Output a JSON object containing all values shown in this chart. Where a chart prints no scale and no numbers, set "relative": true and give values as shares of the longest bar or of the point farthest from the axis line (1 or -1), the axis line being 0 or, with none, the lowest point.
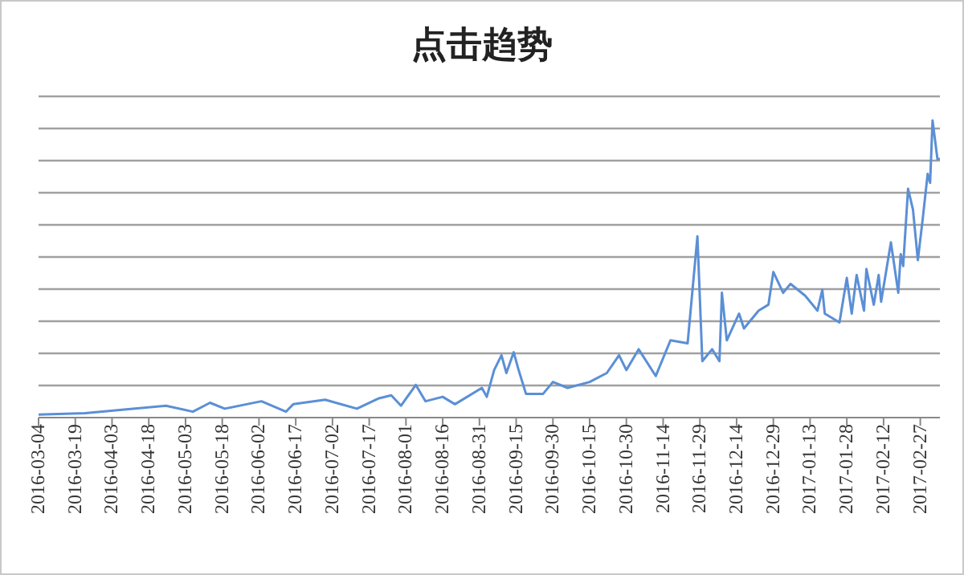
{
  "chart_data": {
    "type": "line",
    "title": "点击趋势",
    "relative": true,
    "grid": "y",
    "marker": "none",
    "line_style": "solid",
    "xlim": [
      "2016-03-04",
      "2017-03-07"
    ],
    "xticks": [
      "2016-03-04",
      "2016-03-19",
      "2016-04-03",
      "2016-04-18",
      "2016-05-03",
      "2016-05-18",
      "2016-06-02",
      "2016-06-17",
      "2016-07-02",
      "2016-07-17",
      "2016-08-01",
      "2016-08-16",
      "2016-08-31",
      "2016-09-15",
      "2016-09-30",
      "2016-10-15",
      "2016-10-30",
      "2016-11-14",
      "2016-11-29",
      "2016-12-14",
      "2016-12-29",
      "2017-01-13",
      "2017-01-28",
      "2017-02-12",
      "2017-02-27"
    ],
    "x": [
      "2016-03-04",
      "2016-03-23",
      "2016-04-25",
      "2016-05-06",
      "2016-05-13",
      "2016-05-19",
      "2016-06-03",
      "2016-06-13",
      "2016-06-16",
      "2016-06-29",
      "2016-07-12",
      "2016-07-21",
      "2016-07-26",
      "2016-07-30",
      "2016-08-05",
      "2016-08-09",
      "2016-08-16",
      "2016-08-21",
      "2016-09-01",
      "2016-09-03",
      "2016-09-06",
      "2016-09-09",
      "2016-09-11",
      "2016-09-14",
      "2016-09-16",
      "2016-09-19",
      "2016-09-26",
      "2016-09-30",
      "2016-10-06",
      "2016-10-15",
      "2016-10-22",
      "2016-10-27",
      "2016-10-30",
      "2016-11-04",
      "2016-11-11",
      "2016-11-17",
      "2016-11-24",
      "2016-11-28",
      "2016-11-30",
      "2016-12-04",
      "2016-12-07",
      "2016-12-08",
      "2016-12-10",
      "2016-12-15",
      "2016-12-17",
      "2016-12-23",
      "2016-12-27",
      "2016-12-29",
      "2017-01-02",
      "2017-01-05",
      "2017-01-11",
      "2017-01-16",
      "2017-01-18",
      "2017-01-19",
      "2017-01-25",
      "2017-01-28",
      "2017-01-30",
      "2017-02-01",
      "2017-02-04",
      "2017-02-05",
      "2017-02-08",
      "2017-02-10",
      "2017-02-11",
      "2017-02-15",
      "2017-02-18",
      "2017-02-19",
      "2017-02-20",
      "2017-02-22",
      "2017-02-24",
      "2017-02-26",
      "2017-02-28",
      "2017-03-02",
      "2017-03-03",
      "2017-03-04",
      "2017-03-06",
      "2017-03-07"
    ],
    "series": [
      {
        "color": "#5b8fd6",
        "values": [
          0.01,
          0.015,
          0.04,
          0.02,
          0.05,
          0.03,
          0.055,
          0.02,
          0.045,
          0.06,
          0.03,
          0.065,
          0.075,
          0.04,
          0.11,
          0.055,
          0.07,
          0.045,
          0.1,
          0.07,
          0.16,
          0.21,
          0.15,
          0.22,
          0.16,
          0.08,
          0.08,
          0.12,
          0.1,
          0.12,
          0.15,
          0.21,
          0.16,
          0.23,
          0.14,
          0.26,
          0.25,
          0.61,
          0.19,
          0.23,
          0.19,
          0.42,
          0.26,
          0.35,
          0.3,
          0.36,
          0.38,
          0.49,
          0.42,
          0.45,
          0.41,
          0.36,
          0.43,
          0.35,
          0.32,
          0.47,
          0.35,
          0.48,
          0.36,
          0.5,
          0.38,
          0.48,
          0.39,
          0.59,
          0.42,
          0.55,
          0.51,
          0.77,
          0.7,
          0.53,
          0.67,
          0.82,
          0.79,
          1,
          0.87,
          0.87
        ]
      }
    ]
  }
}
